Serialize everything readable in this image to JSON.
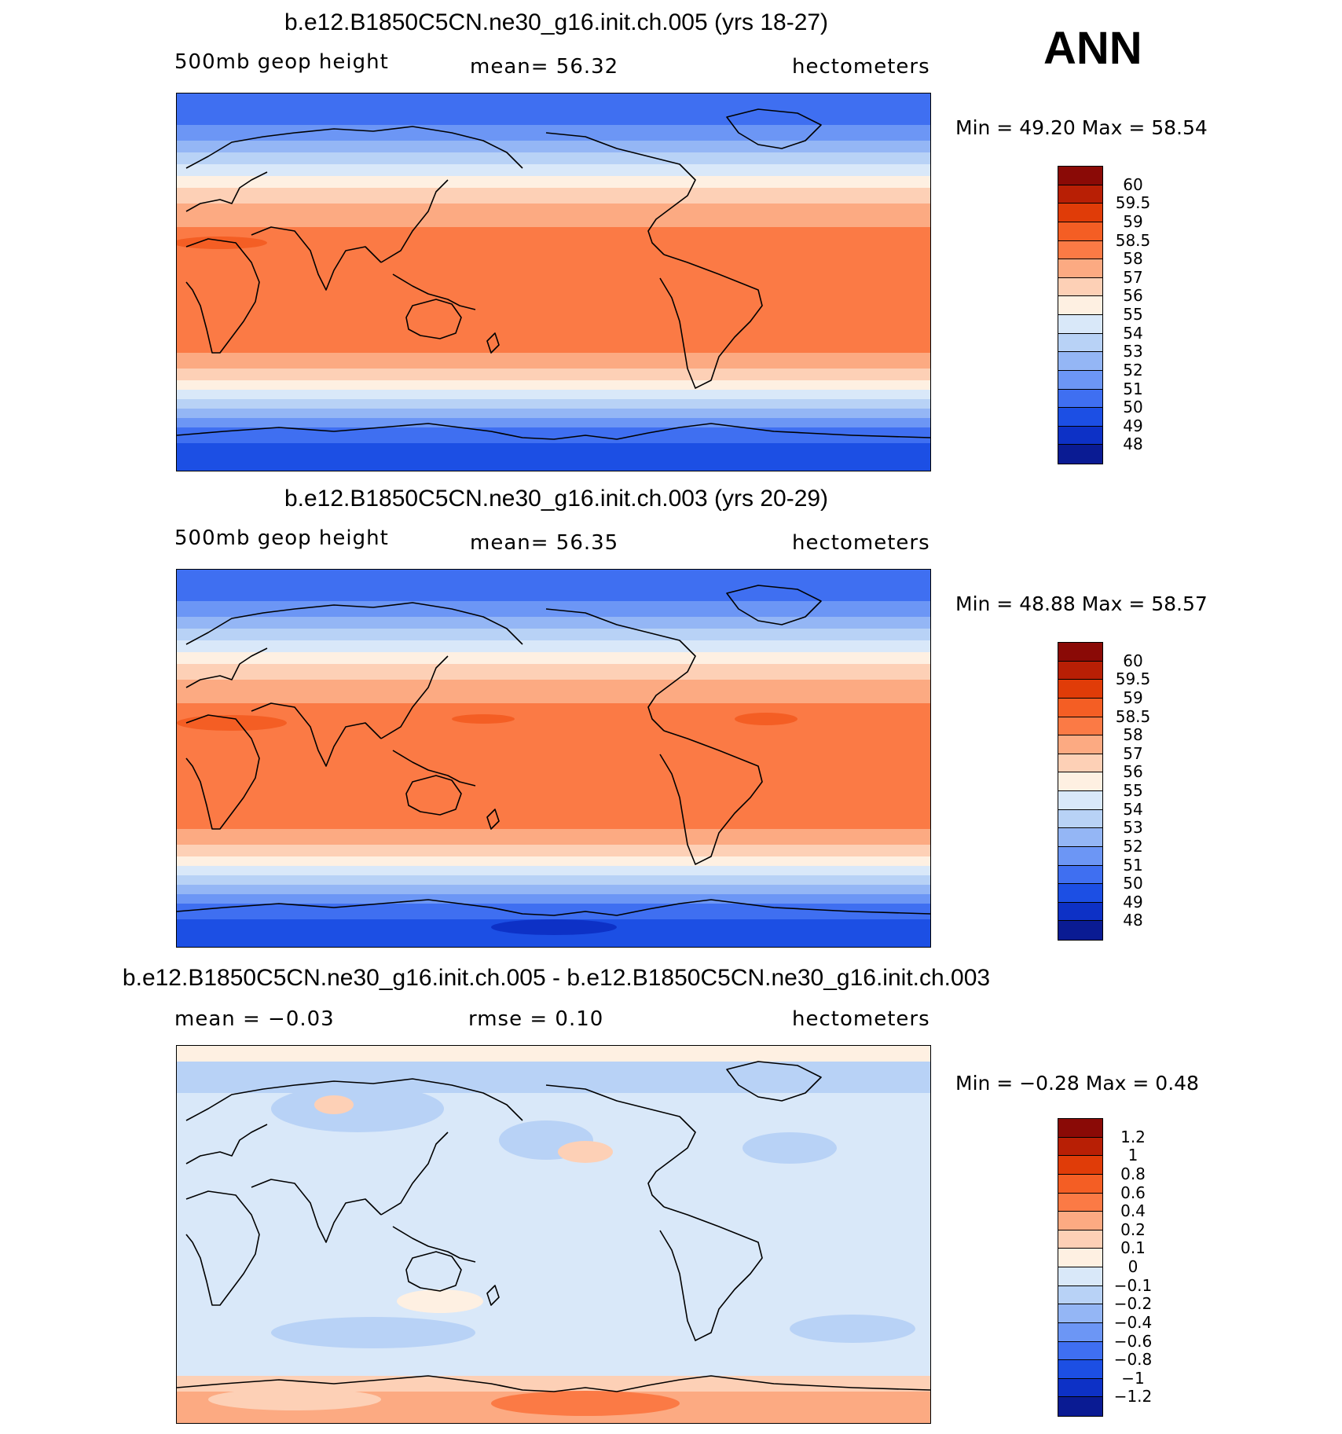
{
  "season": "ANN",
  "panels": [
    {
      "title": "b.e12.B1850C5CN.ne30_g16.init.ch.005 (yrs 18-27)",
      "left_label": "500mb geop height",
      "center_label": "mean=   56.32",
      "right_label": "hectometers",
      "minmax": "Min =   49.20  Max =   58.54"
    },
    {
      "title": "b.e12.B1850C5CN.ne30_g16.init.ch.003 (yrs 20-29)",
      "left_label": "500mb geop height",
      "center_label": "mean=   56.35",
      "right_label": "hectometers",
      "minmax": "Min =   48.88  Max =   58.57"
    },
    {
      "title": "b.e12.B1850C5CN.ne30_g16.init.ch.005 - b.e12.B1850C5CN.ne30_g16.init.ch.003",
      "left_label": "mean =   −0.03",
      "center_label": "rmse =    0.10",
      "right_label": "hectometers",
      "minmax": "Min =  −0.28  Max =    0.48"
    }
  ],
  "chart_data": [
    {
      "type": "heatmap",
      "title": "b.e12.B1850C5CN.ne30_g16.init.ch.005 (yrs 18-27)",
      "variable": "500mb geop height",
      "units": "hectometers",
      "mean": 56.32,
      "min": 49.2,
      "max": 58.54,
      "colorbar_levels": [
        "60",
        "59.5",
        "59",
        "58.5",
        "58",
        "57",
        "56",
        "55",
        "54",
        "53",
        "52",
        "51",
        "50",
        "49",
        "48"
      ],
      "colorbar_colors": [
        "#8a0a06",
        "#b81f05",
        "#e03c08",
        "#f45e24",
        "#fb7a45",
        "#fcaa82",
        "#fdd0b6",
        "#fef0e2",
        "#d9e8f9",
        "#b8d2f6",
        "#94b6f5",
        "#6c96f5",
        "#3f6ff1",
        "#1c4fe4",
        "#0d31c6",
        "#0a1b93"
      ]
    },
    {
      "type": "heatmap",
      "title": "b.e12.B1850C5CN.ne30_g16.init.ch.003 (yrs 20-29)",
      "variable": "500mb geop height",
      "units": "hectometers",
      "mean": 56.35,
      "min": 48.88,
      "max": 58.57,
      "colorbar_levels": [
        "60",
        "59.5",
        "59",
        "58.5",
        "58",
        "57",
        "56",
        "55",
        "54",
        "53",
        "52",
        "51",
        "50",
        "49",
        "48"
      ],
      "colorbar_colors": [
        "#8a0a06",
        "#b81f05",
        "#e03c08",
        "#f45e24",
        "#fb7a45",
        "#fcaa82",
        "#fdd0b6",
        "#fef0e2",
        "#d9e8f9",
        "#b8d2f6",
        "#94b6f5",
        "#6c96f5",
        "#3f6ff1",
        "#1c4fe4",
        "#0d31c6",
        "#0a1b93"
      ]
    },
    {
      "type": "heatmap",
      "title": "b.e12.B1850C5CN.ne30_g16.init.ch.005 - b.e12.B1850C5CN.ne30_g16.init.ch.003",
      "variable": "difference",
      "units": "hectometers",
      "mean": -0.03,
      "rmse": 0.1,
      "min": -0.28,
      "max": 0.48,
      "colorbar_levels": [
        "1.2",
        "1",
        "0.8",
        "0.6",
        "0.4",
        "0.2",
        "0.1",
        "0",
        "−0.1",
        "−0.2",
        "−0.4",
        "−0.6",
        "−0.8",
        "−1",
        "−1.2"
      ],
      "colorbar_colors": [
        "#8a0a06",
        "#b81f05",
        "#e03c08",
        "#f45e24",
        "#fb7a45",
        "#fcaa82",
        "#fdd0b6",
        "#fef0e2",
        "#d9e8f9",
        "#b8d2f6",
        "#94b6f5",
        "#6c96f5",
        "#3f6ff1",
        "#1c4fe4",
        "#0d31c6",
        "#0a1b93"
      ]
    }
  ]
}
